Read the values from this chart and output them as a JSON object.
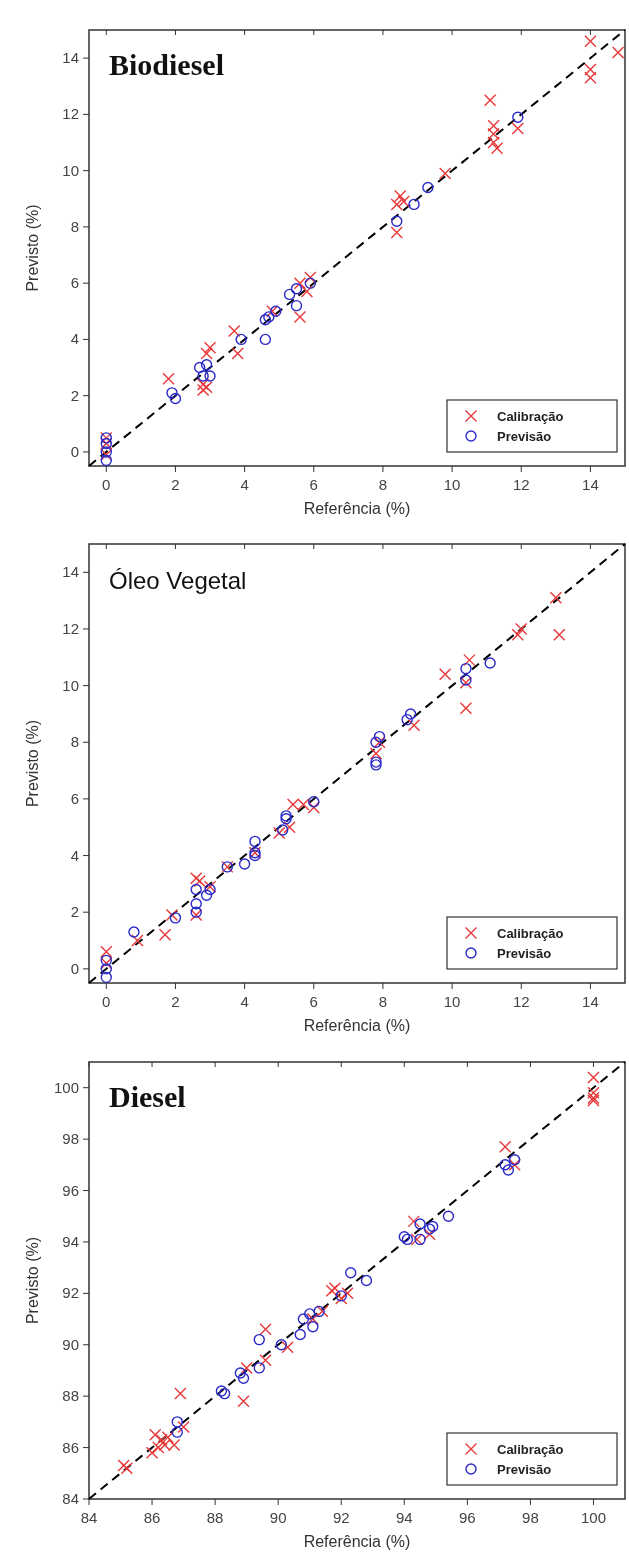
{
  "chart_data": [
    {
      "type": "scatter",
      "title": "Biodiesel",
      "xlabel": "Referência (%)",
      "ylabel": "Previsto (%)",
      "xlim": [
        -0.5,
        15
      ],
      "ylim": [
        -0.5,
        15
      ],
      "xticks": [
        0,
        2,
        4,
        6,
        8,
        10,
        12,
        14
      ],
      "yticks": [
        0,
        2,
        4,
        6,
        8,
        10,
        12,
        14
      ],
      "legend": "bottom right",
      "series": [
        {
          "type": "line",
          "color": "#000000",
          "line_style": "dashed",
          "x": [
            -0.5,
            15
          ],
          "values": [
            -0.5,
            15
          ]
        },
        {
          "name": "Calibração",
          "color": "#e8383a",
          "marker": "cross",
          "x": [
            0,
            0,
            0,
            1.8,
            2.8,
            2.8,
            2.9,
            2.9,
            3.0,
            3.7,
            3.8,
            4.8,
            5.6,
            5.6,
            5.8,
            5.9,
            8.4,
            8.4,
            8.5,
            8.6,
            9.8,
            11.1,
            11.2,
            11.2,
            11.3,
            11.2,
            11.9,
            14.0,
            14.0,
            14.0,
            14.8
          ],
          "values": [
            0.3,
            0.5,
            -0.1,
            2.6,
            2.2,
            2.4,
            2.3,
            3.5,
            3.7,
            4.3,
            3.5,
            5.0,
            4.8,
            6.0,
            5.7,
            6.2,
            7.8,
            8.8,
            9.1,
            8.9,
            9.9,
            12.5,
            11.6,
            11.0,
            10.8,
            11.3,
            11.5,
            14.6,
            13.6,
            13.3,
            14.2
          ]
        },
        {
          "name": "Previsão",
          "color": "#2a2ac8",
          "marker": "circle",
          "x": [
            0,
            0,
            0,
            0,
            1.9,
            2.0,
            2.7,
            2.8,
            2.9,
            3.0,
            3.9,
            4.6,
            4.6,
            4.7,
            4.9,
            5.3,
            5.5,
            5.5,
            5.9,
            8.4,
            8.9,
            9.3,
            11.9
          ],
          "values": [
            0.5,
            0.3,
            0,
            -0.3,
            2.1,
            1.9,
            3.0,
            2.7,
            3.1,
            2.7,
            4.0,
            4.7,
            4.0,
            4.8,
            5.0,
            5.6,
            5.8,
            5.2,
            6.0,
            8.2,
            8.8,
            9.4,
            11.9
          ]
        }
      ]
    },
    {
      "type": "scatter",
      "title": "Óleo Vegetal",
      "xlabel": "Referência (%)",
      "ylabel": "Previsto (%)",
      "xlim": [
        -0.5,
        15
      ],
      "ylim": [
        -0.5,
        15
      ],
      "xticks": [
        0,
        2,
        4,
        6,
        8,
        10,
        12,
        14
      ],
      "yticks": [
        0,
        2,
        4,
        6,
        8,
        10,
        12,
        14
      ],
      "legend": "bottom right",
      "series": [
        {
          "type": "line",
          "color": "#000000",
          "line_style": "dashed",
          "x": [
            -0.5,
            15
          ],
          "values": [
            -0.5,
            15
          ]
        },
        {
          "name": "Calibração",
          "color": "#e8383a",
          "marker": "cross",
          "x": [
            0,
            0,
            0.9,
            1.7,
            1.9,
            2.6,
            2.7,
            2.6,
            3.0,
            3.5,
            4.3,
            5.0,
            5.3,
            5.4,
            5.7,
            6.0,
            7.8,
            7.9,
            8.9,
            9.8,
            10.4,
            10.5,
            10.4,
            11.9,
            12.0,
            13.0,
            13.1
          ],
          "values": [
            0.6,
            0.2,
            1.0,
            1.2,
            1.9,
            3.2,
            3.1,
            1.9,
            2.9,
            3.6,
            4.1,
            4.8,
            5.0,
            5.8,
            5.8,
            5.7,
            7.6,
            8.0,
            8.6,
            10.4,
            9.2,
            10.9,
            10.1,
            11.8,
            12.0,
            13.1,
            11.8
          ]
        },
        {
          "name": "Previsão",
          "color": "#2a2ac8",
          "marker": "circle",
          "x": [
            0,
            0,
            0,
            0.8,
            2.0,
            2.6,
            2.6,
            2.6,
            2.9,
            3.0,
            3.5,
            4.0,
            4.3,
            4.3,
            4.3,
            5.1,
            5.2,
            5.2,
            6.0,
            7.8,
            7.8,
            7.8,
            7.9,
            8.7,
            8.8,
            10.4,
            10.4,
            11.1
          ],
          "values": [
            0.3,
            0,
            -0.3,
            1.3,
            1.8,
            2.8,
            2.3,
            2.0,
            2.6,
            2.8,
            3.6,
            3.7,
            4.5,
            4.1,
            4.0,
            4.9,
            5.3,
            5.4,
            5.9,
            7.2,
            7.3,
            8.0,
            8.2,
            8.8,
            9.0,
            10.6,
            10.2,
            10.8
          ]
        }
      ]
    },
    {
      "type": "scatter",
      "title": "Diesel",
      "xlabel": "Referência (%)",
      "ylabel": "Previsto (%)",
      "xlim": [
        84,
        101
      ],
      "ylim": [
        84,
        101
      ],
      "xticks": [
        84,
        86,
        88,
        90,
        92,
        94,
        96,
        98,
        100
      ],
      "yticks": [
        84,
        86,
        88,
        90,
        92,
        94,
        96,
        98,
        100
      ],
      "legend": "bottom right",
      "series": [
        {
          "type": "line",
          "color": "#000000",
          "line_style": "dashed",
          "x": [
            84,
            101
          ],
          "values": [
            84,
            101
          ]
        },
        {
          "name": "Calibração",
          "color": "#e8383a",
          "marker": "cross",
          "x": [
            85.2,
            85.1,
            86.0,
            86.1,
            86.2,
            86.3,
            86.4,
            86.5,
            86.7,
            87.0,
            86.9,
            88.9,
            89.0,
            89.6,
            89.6,
            90.3,
            91.1,
            91.4,
            91.7,
            91.8,
            92.0,
            92.2,
            94.3,
            94.4,
            94.8,
            97.2,
            97.5,
            100,
            100,
            100,
            100
          ],
          "values": [
            85.2,
            85.3,
            85.8,
            86.5,
            86.0,
            86.3,
            86.1,
            86.4,
            86.1,
            86.8,
            88.1,
            87.8,
            89.1,
            89.4,
            90.6,
            89.9,
            91.0,
            91.3,
            92.1,
            92.2,
            91.8,
            92.0,
            94.8,
            94.1,
            94.3,
            97.7,
            97.0,
            100.4,
            99.8,
            99.6,
            99.5
          ]
        },
        {
          "name": "Previsão",
          "color": "#2a2ac8",
          "marker": "circle",
          "x": [
            86.8,
            86.8,
            88.2,
            88.3,
            88.8,
            88.9,
            89.4,
            89.4,
            90.1,
            90.7,
            90.8,
            91.0,
            91.1,
            91.3,
            92.0,
            92.3,
            92.8,
            94.0,
            94.1,
            94.5,
            94.5,
            94.8,
            94.9,
            95.4,
            97.2,
            97.3,
            97.5
          ],
          "values": [
            87.0,
            86.6,
            88.2,
            88.1,
            88.9,
            88.7,
            89.1,
            90.2,
            90.0,
            90.4,
            91.0,
            91.2,
            90.7,
            91.3,
            91.9,
            92.8,
            92.5,
            94.2,
            94.1,
            94.1,
            94.7,
            94.5,
            94.6,
            95.0,
            97.0,
            96.8,
            97.2
          ]
        }
      ]
    }
  ]
}
